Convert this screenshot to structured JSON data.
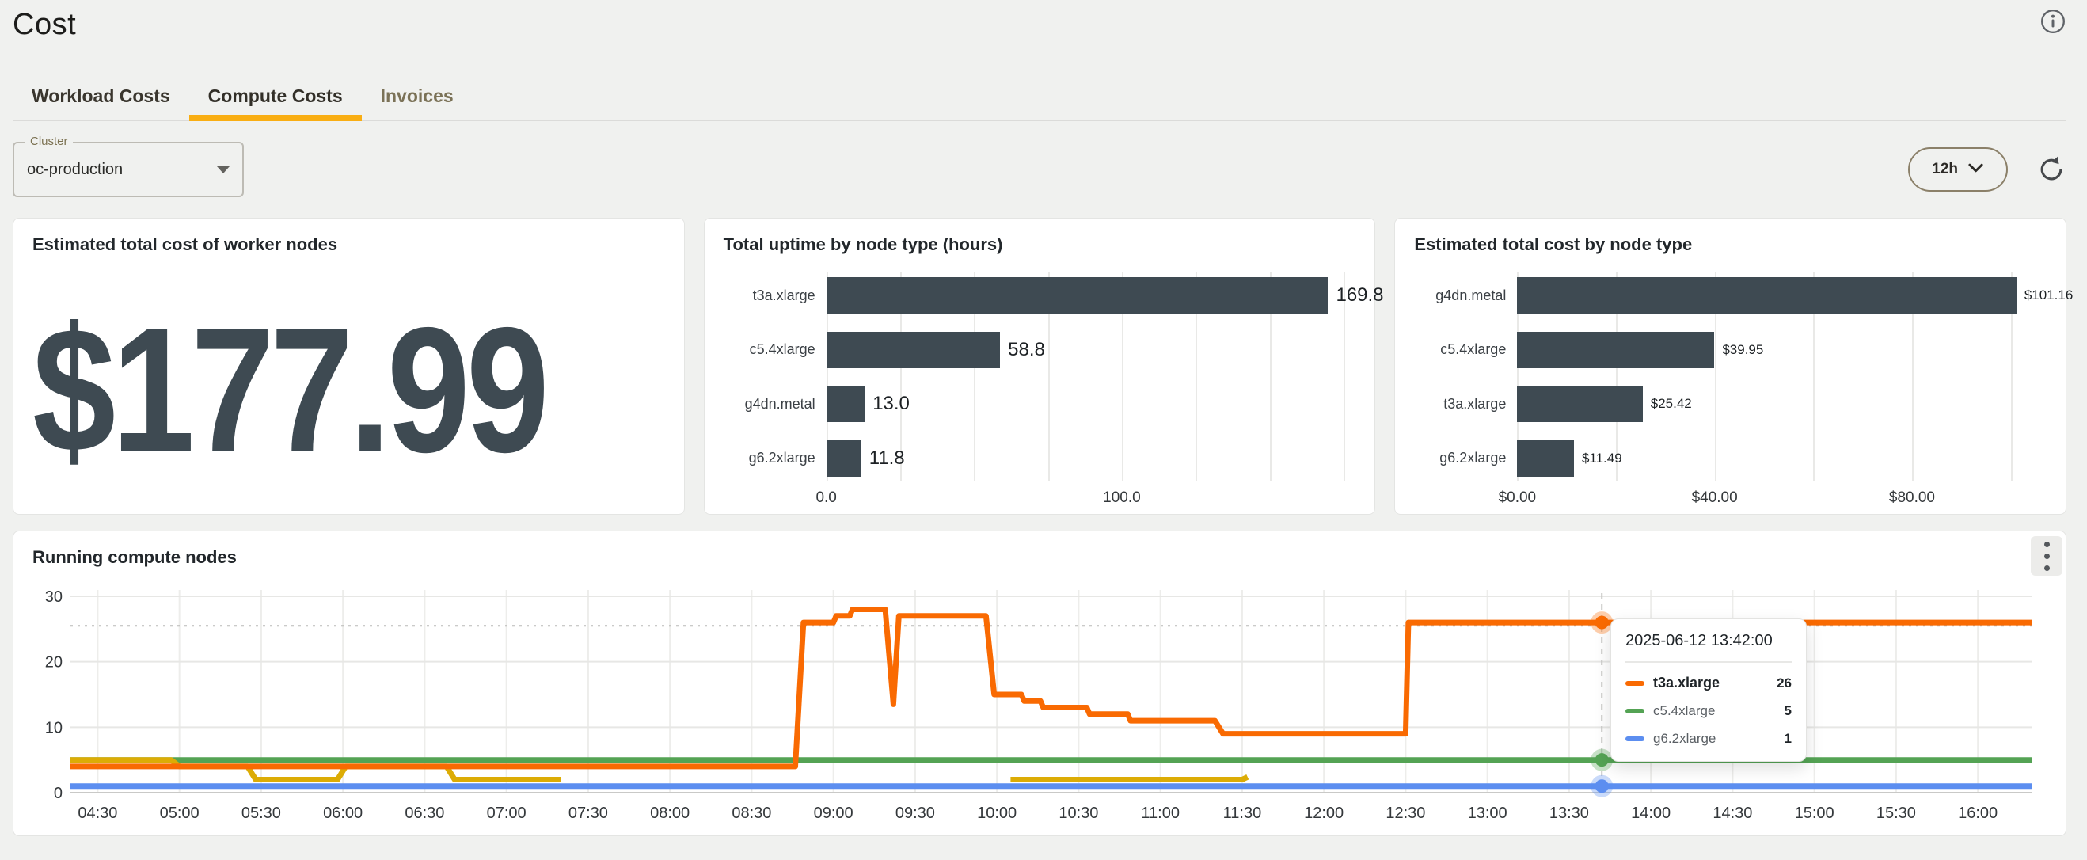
{
  "colors": {
    "accent_amber": "#f9ae13",
    "bar": "#3e4a52",
    "big_value": "#3e4a52",
    "series_orange": "#f96a02",
    "series_green": "#54a354",
    "series_gold": "#dcac05",
    "series_blue": "#5c8ef0"
  },
  "header": {
    "title": "Cost",
    "info_icon": "info-circle"
  },
  "tabs": {
    "items": [
      {
        "label": "Workload Costs",
        "active": false,
        "muted": false
      },
      {
        "label": "Compute Costs",
        "active": true,
        "muted": false
      },
      {
        "label": "Invoices",
        "active": false,
        "muted": true
      }
    ]
  },
  "filters": {
    "cluster": {
      "label": "Cluster",
      "value": "oc-production",
      "caret_icon": "caret-down"
    },
    "time_range": {
      "value": "12h",
      "chevron_icon": "chevron-down"
    },
    "refresh_icon": "refresh"
  },
  "summary_card": {
    "title": "Estimated total cost of worker nodes",
    "value": "$177.99"
  },
  "chart_data": [
    {
      "id": "uptime-by-node-type",
      "type": "bar",
      "orientation": "horizontal",
      "title": "Total uptime by node type (hours)",
      "categories": [
        "t3a.xlarge",
        "c5.4xlarge",
        "g4dn.metal",
        "g6.2xlarge"
      ],
      "values": [
        169.8,
        58.8,
        13.0,
        11.8
      ],
      "value_labels": [
        "169.8",
        "58.8",
        "13.0",
        "11.8"
      ],
      "xlim": [
        0,
        177
      ],
      "grid_step": 25,
      "ticks": [
        {
          "value": 0,
          "label": "0.0"
        },
        {
          "value": 100,
          "label": "100.0"
        }
      ],
      "bar_color": "#3e4a52",
      "value_font_px": 24
    },
    {
      "id": "cost-by-node-type",
      "type": "bar",
      "orientation": "horizontal",
      "title": "Estimated total cost by node type",
      "categories": [
        "g4dn.metal",
        "c5.4xlarge",
        "t3a.xlarge",
        "g6.2xlarge"
      ],
      "values": [
        101.16,
        39.95,
        25.42,
        11.49
      ],
      "value_labels": [
        "$101.16",
        "$39.95",
        "$25.42",
        "$11.49"
      ],
      "xlim": [
        0,
        106
      ],
      "grid_step": 20,
      "ticks": [
        {
          "value": 0,
          "label": "$0.00"
        },
        {
          "value": 40,
          "label": "$40.00"
        },
        {
          "value": 80,
          "label": "$80.00"
        }
      ],
      "bar_color": "#3e4a52",
      "value_font_px": 17
    },
    {
      "id": "running-compute-nodes",
      "type": "line",
      "title": "Running compute nodes",
      "x_domain": [
        "04:20",
        "16:20"
      ],
      "xticks": [
        "04:30",
        "05:00",
        "05:30",
        "06:00",
        "06:30",
        "07:00",
        "07:30",
        "08:00",
        "08:30",
        "09:00",
        "09:30",
        "10:00",
        "10:30",
        "11:00",
        "11:30",
        "12:00",
        "12:30",
        "13:00",
        "13:30",
        "14:00",
        "14:30",
        "15:00",
        "15:30",
        "16:00"
      ],
      "ylim": [
        0,
        30
      ],
      "yticks": [
        0,
        10,
        20,
        30
      ],
      "threshold": 25.5,
      "crosshair_time": "13:42",
      "series": [
        {
          "name": "c5.4xlarge",
          "color": "#54a354",
          "segments": [
            [
              [
                "04:20",
                5
              ],
              [
                "16:20",
                5
              ]
            ]
          ]
        },
        {
          "name": "g6.2xlarge",
          "color": "#5c8ef0",
          "segments": [
            [
              [
                "04:20",
                1
              ],
              [
                "16:20",
                1
              ]
            ]
          ]
        },
        {
          "name": "g4dn.metal",
          "color": "#dcac05",
          "segments": [
            [
              [
                "04:20",
                5
              ],
              [
                "04:57",
                5
              ],
              [
                "05:00",
                4
              ],
              [
                "05:25",
                4
              ],
              [
                "05:28",
                2
              ],
              [
                "05:58",
                2
              ],
              [
                "06:01",
                4
              ],
              [
                "06:38",
                4
              ],
              [
                "06:41",
                2
              ],
              [
                "07:20",
                2
              ]
            ],
            [
              [
                "10:05",
                2
              ],
              [
                "11:30",
                2
              ],
              [
                "11:32",
                2.4
              ]
            ]
          ]
        },
        {
          "name": "t3a.xlarge",
          "color": "#f96a02",
          "segments": [
            [
              [
                "04:20",
                4
              ],
              [
                "08:46",
                4
              ],
              [
                "08:49",
                26
              ],
              [
                "09:00",
                26
              ],
              [
                "09:01",
                27
              ],
              [
                "09:06",
                27
              ],
              [
                "09:07",
                28
              ],
              [
                "09:19",
                28
              ],
              [
                "09:22",
                13.5
              ],
              [
                "09:24",
                27
              ],
              [
                "09:56",
                27
              ],
              [
                "09:59",
                15
              ],
              [
                "10:09",
                15
              ],
              [
                "10:10",
                14
              ],
              [
                "10:16",
                14
              ],
              [
                "10:17",
                13
              ],
              [
                "10:33",
                13
              ],
              [
                "10:34",
                12
              ],
              [
                "10:48",
                12
              ],
              [
                "10:49",
                11
              ],
              [
                "11:20",
                11
              ],
              [
                "11:23",
                9
              ],
              [
                "12:30",
                9
              ],
              [
                "12:31",
                26
              ],
              [
                "16:20",
                26
              ]
            ]
          ]
        }
      ],
      "markers": [
        {
          "time": "13:42",
          "value": 26,
          "color": "#f96a02"
        },
        {
          "time": "13:42",
          "value": 5,
          "color": "#54a354"
        },
        {
          "time": "13:42",
          "value": 1,
          "color": "#5c8ef0"
        }
      ]
    }
  ],
  "tooltip": {
    "timestamp": "2025-06-12 13:42:00",
    "rows": [
      {
        "series": "t3a.xlarge",
        "value": "26",
        "color": "#f96a02",
        "bold": true
      },
      {
        "series": "c5.4xlarge",
        "value": "5",
        "color": "#54a354",
        "bold": false
      },
      {
        "series": "g6.2xlarge",
        "value": "1",
        "color": "#5c8ef0",
        "bold": false
      }
    ]
  },
  "menu": {
    "kebab_icon": "kebab-vertical"
  }
}
